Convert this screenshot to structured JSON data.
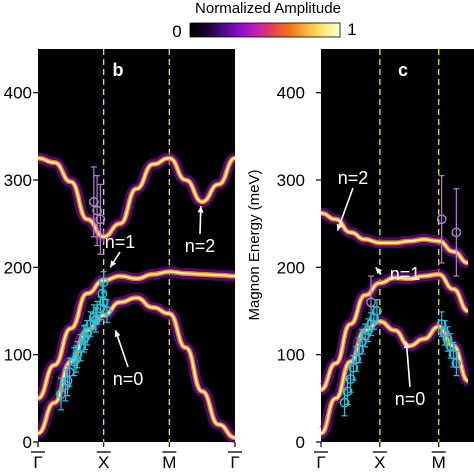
{
  "colorbar": {
    "title": "Normalized Amplitude",
    "min_label": "0",
    "max_label": "1",
    "colormap": [
      "#000000",
      "#1a0033",
      "#4b0a8a",
      "#8a10c9",
      "#c21fb0",
      "#e8434f",
      "#f4761d",
      "#f9b43b",
      "#fde978",
      "#ffffd0"
    ]
  },
  "chart_data": [
    {
      "type": "line",
      "panel": "b",
      "ylabel": "",
      "ylim": [
        0,
        450
      ],
      "y_ticks": [
        "0",
        "100",
        "200",
        "300",
        "400"
      ],
      "x_ticks": [
        "Γ",
        "X",
        "M",
        "Γ"
      ],
      "x_ticks_overlined": true,
      "xlim": [
        0,
        3
      ],
      "vlines_dashed_at": [
        1,
        2
      ],
      "series": [
        {
          "name": "n=0",
          "x": [
            0,
            0.25,
            0.5,
            0.75,
            1.0,
            1.25,
            1.5,
            1.75,
            2.0,
            2.25,
            2.5,
            2.75,
            3.0
          ],
          "values": [
            10,
            45,
            92,
            128,
            145,
            160,
            165,
            154,
            147,
            108,
            58,
            20,
            5
          ]
        },
        {
          "name": "n=1",
          "x": [
            0,
            0.25,
            0.5,
            0.75,
            1.0,
            1.25,
            1.5,
            1.75,
            2.0,
            2.25,
            2.5,
            2.75,
            3.0
          ],
          "values": [
            50,
            88,
            130,
            170,
            185,
            190,
            187,
            192,
            195,
            193,
            192,
            191,
            190
          ]
        },
        {
          "name": "n=2",
          "x": [
            0,
            0.25,
            0.5,
            0.75,
            1.0,
            1.25,
            1.5,
            1.75,
            2.0,
            2.25,
            2.5,
            2.75,
            3.0
          ],
          "values": [
            325,
            320,
            298,
            255,
            235,
            250,
            290,
            318,
            325,
            300,
            275,
            295,
            325
          ]
        }
      ],
      "annotations": [
        {
          "text": "n=2",
          "target_x": 2.48,
          "target_y": 270
        },
        {
          "text": "n=1",
          "target_x": 1.1,
          "target_y": 200
        },
        {
          "text": "n=0",
          "target_x": 1.18,
          "target_y": 128
        }
      ],
      "experimental_points": {
        "color": "#22c4d6",
        "x": [
          0.35,
          0.42,
          0.48,
          0.55,
          0.6,
          0.65,
          0.7,
          0.75,
          0.8,
          0.85,
          0.9,
          0.95,
          1.0,
          1.05,
          0.45,
          0.58,
          0.72,
          0.88,
          0.98,
          1.0
        ],
        "values": [
          55,
          65,
          80,
          92,
          100,
          108,
          118,
          125,
          135,
          143,
          148,
          153,
          160,
          150,
          70,
          95,
          120,
          140,
          170,
          183
        ],
        "yerr": [
          18,
          18,
          16,
          16,
          15,
          15,
          15,
          14,
          14,
          14,
          13,
          13,
          13,
          13,
          17,
          15,
          14,
          14,
          13,
          12
        ]
      },
      "upper_points": {
        "color": "#b57edc",
        "x": [
          0.85,
          0.9,
          0.95
        ],
        "values": [
          275,
          265,
          255
        ],
        "yerr": [
          40,
          40,
          40
        ]
      },
      "grid": false
    },
    {
      "type": "line",
      "panel": "c",
      "ylabel": "Magnon Energy (meV)",
      "ylim": [
        0,
        450
      ],
      "y_ticks": [
        "0",
        "100",
        "200",
        "300",
        "400"
      ],
      "x_ticks": [
        "Γ",
        "X",
        "M"
      ],
      "x_ticks_overlined": true,
      "xlim": [
        0,
        2.6
      ],
      "vlines_dashed_at": [
        1,
        2
      ],
      "series": [
        {
          "name": "n=0",
          "x": [
            0,
            0.25,
            0.5,
            0.75,
            1.0,
            1.25,
            1.5,
            1.75,
            2.0,
            2.25,
            2.5
          ],
          "values": [
            10,
            50,
            92,
            128,
            138,
            128,
            110,
            118,
            132,
            110,
            70
          ]
        },
        {
          "name": "n=1",
          "x": [
            0,
            0.25,
            0.5,
            0.75,
            1.0,
            1.25,
            1.5,
            1.75,
            2.0,
            2.25,
            2.5
          ],
          "values": [
            60,
            90,
            135,
            168,
            182,
            188,
            187,
            190,
            192,
            175,
            150
          ]
        },
        {
          "name": "n=2",
          "x": [
            0,
            0.25,
            0.5,
            0.75,
            1.0,
            1.25,
            1.5,
            1.75,
            2.0,
            2.25,
            2.5
          ],
          "values": [
            262,
            255,
            240,
            232,
            228,
            228,
            230,
            232,
            230,
            218,
            205
          ]
        }
      ],
      "annotations": [
        {
          "text": "n=2",
          "target_x": 0.28,
          "target_y": 242
        },
        {
          "text": "n=1",
          "target_x": 0.93,
          "target_y": 200
        },
        {
          "text": "n=0",
          "target_x": 1.45,
          "target_y": 115
        }
      ],
      "experimental_points": {
        "color": "#22c4d6",
        "x": [
          0.4,
          0.45,
          0.5,
          0.55,
          0.6,
          0.65,
          0.7,
          0.75,
          0.8,
          0.85,
          0.9,
          0.95,
          2.05,
          2.1,
          2.15,
          2.2,
          2.25,
          2.3
        ],
        "values": [
          45,
          58,
          72,
          85,
          95,
          105,
          115,
          122,
          128,
          135,
          142,
          150,
          135,
          125,
          118,
          110,
          100,
          90
        ],
        "yerr": [
          15,
          15,
          15,
          14,
          14,
          14,
          14,
          13,
          13,
          13,
          13,
          13,
          14,
          14,
          14,
          14,
          14,
          14
        ]
      },
      "upper_points": {
        "color": "#b57edc",
        "x": [
          0.85,
          2.05,
          2.3
        ],
        "values": [
          160,
          255,
          240
        ],
        "yerr": [
          30,
          50,
          50
        ]
      },
      "grid": false
    }
  ]
}
